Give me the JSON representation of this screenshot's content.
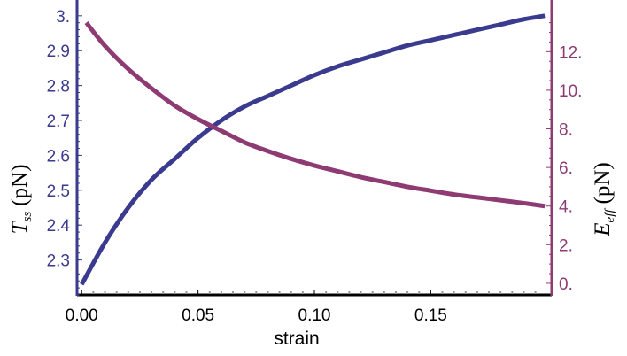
{
  "chart_data": {
    "type": "line",
    "xlabel": "strain",
    "x_ticks": [
      0.0,
      0.05,
      0.1,
      0.15
    ],
    "x_tick_labels": [
      "0.00",
      "0.05",
      "0.10",
      "0.15"
    ],
    "xlim": [
      -0.002,
      0.202
    ],
    "left_axis": {
      "label_main": "T",
      "label_sub": "ss",
      "label_unit": "(pN)",
      "color": "#3a3a8f",
      "ylim": [
        2.2,
        3.03
      ],
      "ticks": [
        2.3,
        2.4,
        2.5,
        2.6,
        2.7,
        2.8,
        2.9,
        3.0
      ],
      "tick_labels": [
        "2.3",
        "2.4",
        "2.5",
        "2.6",
        "2.7",
        "2.8",
        "2.9",
        "3."
      ]
    },
    "right_axis": {
      "label_main": "E",
      "label_sub": "eff",
      "label_unit": "(pN)",
      "color": "#8e3a73",
      "ylim": [
        -0.6,
        14.4
      ],
      "ticks": [
        0,
        2,
        4,
        6,
        8,
        10,
        12
      ],
      "tick_labels": [
        "0.",
        "2.",
        "4.",
        "6.",
        "8.",
        "10.",
        "12."
      ]
    },
    "series": [
      {
        "axis": "left",
        "color": "#3a3a8f",
        "x": [
          0.0,
          0.01,
          0.02,
          0.03,
          0.04,
          0.05,
          0.06,
          0.07,
          0.08,
          0.09,
          0.1,
          0.11,
          0.12,
          0.13,
          0.14,
          0.15,
          0.16,
          0.17,
          0.18,
          0.19,
          0.199
        ],
        "y": [
          2.23,
          2.35,
          2.45,
          2.53,
          2.59,
          2.65,
          2.7,
          2.74,
          2.77,
          2.8,
          2.83,
          2.855,
          2.875,
          2.895,
          2.915,
          2.93,
          2.945,
          2.96,
          2.975,
          2.99,
          3.0
        ]
      },
      {
        "axis": "right",
        "color": "#8e3a73",
        "x": [
          0.002,
          0.01,
          0.02,
          0.03,
          0.04,
          0.05,
          0.06,
          0.07,
          0.08,
          0.09,
          0.1,
          0.11,
          0.12,
          0.13,
          0.14,
          0.15,
          0.16,
          0.17,
          0.18,
          0.19,
          0.199
        ],
        "y": [
          13.5,
          12.3,
          11.1,
          10.1,
          9.2,
          8.5,
          7.9,
          7.3,
          6.85,
          6.45,
          6.1,
          5.8,
          5.5,
          5.25,
          5.0,
          4.8,
          4.6,
          4.45,
          4.3,
          4.15,
          4.0
        ]
      }
    ]
  }
}
